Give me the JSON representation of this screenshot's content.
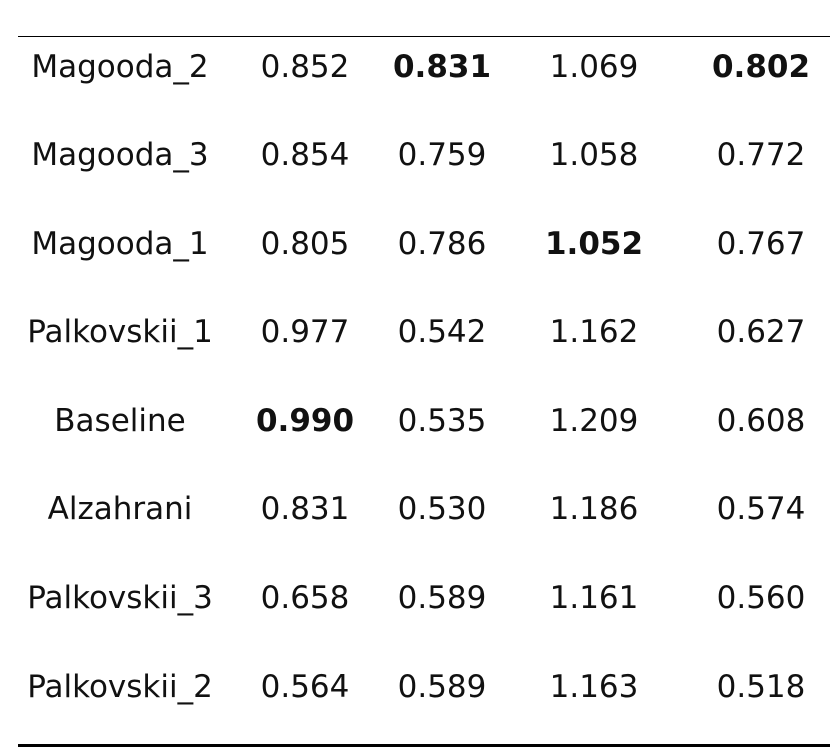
{
  "table": {
    "rows": [
      [
        "Magooda_2",
        "0.852",
        "0.831",
        "1.069",
        "0.802"
      ],
      [
        "Magooda_3",
        "0.854",
        "0.759",
        "1.058",
        "0.772"
      ],
      [
        "Magooda_1",
        "0.805",
        "0.786",
        "1.052",
        "0.767"
      ],
      [
        "Palkovskii_1",
        "0.977",
        "0.542",
        "1.162",
        "0.627"
      ],
      [
        "Baseline",
        "0.990",
        "0.535",
        "1.209",
        "0.608"
      ],
      [
        "Alzahrani",
        "0.831",
        "0.530",
        "1.186",
        "0.574"
      ],
      [
        "Palkovskii_3",
        "0.658",
        "0.589",
        "1.161",
        "0.560"
      ],
      [
        "Palkovskii_2",
        "0.564",
        "0.589",
        "1.163",
        "0.518"
      ]
    ]
  }
}
